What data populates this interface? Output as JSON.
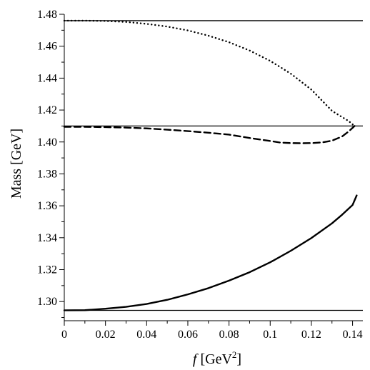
{
  "chart_data": {
    "type": "line",
    "title": "",
    "xlabel": {
      "italic": "f",
      "unit_pre": " [GeV",
      "unit_sup": "2",
      "unit_post": "]"
    },
    "ylabel": "Mass [GeV]",
    "xlim": [
      0,
      0.145
    ],
    "ylim": [
      1.288,
      1.48
    ],
    "xticks": [
      0,
      0.02,
      0.04,
      0.06,
      0.08,
      0.1,
      0.12,
      0.14
    ],
    "xtick_labels": [
      "0",
      "0.02",
      "0.04",
      "0.06",
      "0.08",
      "0.1",
      "0.12",
      "0.14"
    ],
    "yticks": [
      1.3,
      1.32,
      1.34,
      1.36,
      1.38,
      1.4,
      1.42,
      1.44,
      1.46,
      1.48
    ],
    "ytick_labels": [
      "1.30",
      "1.32",
      "1.34",
      "1.36",
      "1.38",
      "1.40",
      "1.42",
      "1.44",
      "1.46",
      "1.48"
    ],
    "grid": false,
    "reference_lines": [
      {
        "y": 1.476
      },
      {
        "y": 1.41
      },
      {
        "y": 1.2945
      }
    ],
    "series": [
      {
        "style": "dotted",
        "x": [
          0,
          0.01,
          0.02,
          0.03,
          0.04,
          0.05,
          0.06,
          0.07,
          0.08,
          0.09,
          0.1,
          0.11,
          0.12,
          0.13,
          0.135,
          0.138,
          0.141
        ],
        "y": [
          1.476,
          1.476,
          1.4758,
          1.4752,
          1.474,
          1.4723,
          1.4699,
          1.4666,
          1.4625,
          1.4573,
          1.4508,
          1.4428,
          1.4328,
          1.4195,
          1.4155,
          1.4132,
          1.41
        ]
      },
      {
        "style": "dashed",
        "x": [
          0,
          0.01,
          0.02,
          0.03,
          0.04,
          0.05,
          0.06,
          0.07,
          0.08,
          0.09,
          0.1,
          0.105,
          0.11,
          0.115,
          0.12,
          0.125,
          0.13,
          0.135,
          0.138,
          0.141
        ],
        "y": [
          1.4095,
          1.4095,
          1.4093,
          1.409,
          1.4085,
          1.4077,
          1.4068,
          1.4058,
          1.4046,
          1.4025,
          1.4006,
          1.3996,
          1.3993,
          1.3992,
          1.3993,
          1.3997,
          1.4008,
          1.4035,
          1.4065,
          1.41
        ]
      },
      {
        "style": "solid",
        "x": [
          0,
          0.01,
          0.02,
          0.03,
          0.04,
          0.05,
          0.06,
          0.07,
          0.08,
          0.09,
          0.1,
          0.11,
          0.12,
          0.13,
          0.135,
          0.14,
          0.142
        ],
        "y": [
          1.2945,
          1.2946,
          1.2955,
          1.2967,
          1.2985,
          1.3011,
          1.3045,
          1.3084,
          1.3131,
          1.3184,
          1.3246,
          1.3318,
          1.3398,
          1.349,
          1.3545,
          1.3605,
          1.3665
        ]
      }
    ]
  }
}
